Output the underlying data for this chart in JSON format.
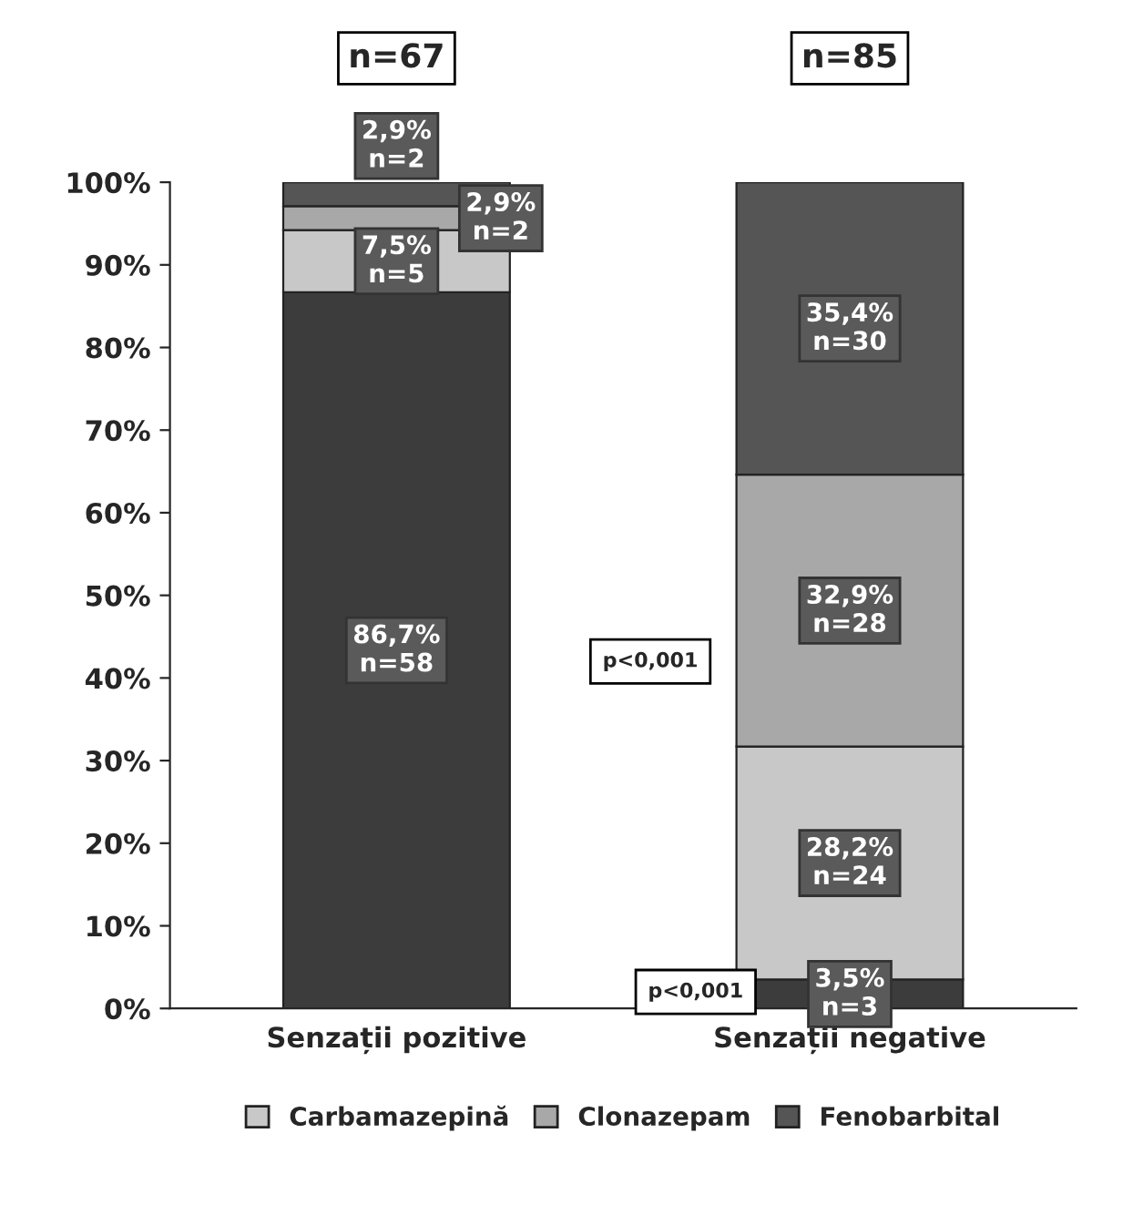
{
  "chart_data": {
    "type": "bar",
    "stacked": true,
    "categories": [
      "Senzații pozitive",
      "Senzații negative"
    ],
    "ylim": [
      0,
      100
    ],
    "yticks": [
      {
        "value": 0,
        "label": "0%"
      },
      {
        "value": 10,
        "label": "10%"
      },
      {
        "value": 20,
        "label": "20%"
      },
      {
        "value": 30,
        "label": "30%"
      },
      {
        "value": 40,
        "label": "40%"
      },
      {
        "value": 50,
        "label": "50%"
      },
      {
        "value": 60,
        "label": "60%"
      },
      {
        "value": 70,
        "label": "70%"
      },
      {
        "value": 80,
        "label": "80%"
      },
      {
        "value": 90,
        "label": "90%"
      },
      {
        "value": 100,
        "label": "100%"
      }
    ],
    "series": [
      {
        "color": "#3c3c3c",
        "values": [
          86.7,
          3.5
        ],
        "value_labels": [
          "86,7%\nn=58",
          "3,5%\nn=3"
        ]
      },
      {
        "name": "Carbamazepină",
        "color": "#c8c8c8",
        "values": [
          7.5,
          28.2
        ],
        "value_labels": [
          "7,5%\nn=5",
          "28,2%\nn=24"
        ]
      },
      {
        "name": "Clonazepam",
        "color": "#a8a8a8",
        "values": [
          2.9,
          32.9
        ],
        "value_labels": [
          "2,9%\nn=2",
          "32,9%\nn=28"
        ]
      },
      {
        "name": "Fenobarbital",
        "color": "#555555",
        "values": [
          2.9,
          35.4
        ],
        "value_labels": [
          "2,9%\nn=2",
          "35,4%\nn=30"
        ]
      }
    ],
    "annotations": [
      "n=67",
      "n=85",
      "p<0,001",
      "p<0,001"
    ],
    "legend": "bottom",
    "grid": false
  }
}
